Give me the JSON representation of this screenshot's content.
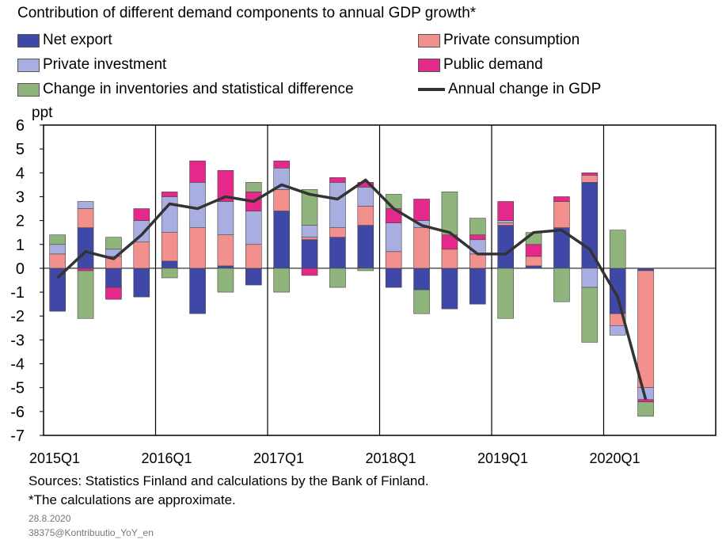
{
  "title": "Contribution of different demand components to annual GDP growth*",
  "legend": [
    {
      "key": "net_export",
      "label": "Net export"
    },
    {
      "key": "private_consumption",
      "label": "Private consumption"
    },
    {
      "key": "private_investment",
      "label": "Private investment"
    },
    {
      "key": "public_demand",
      "label": "Public demand"
    },
    {
      "key": "inventories",
      "label": "Change in inventories and statistical difference"
    },
    {
      "key": "gdp_line",
      "label": "Annual change in GDP"
    }
  ],
  "footer": {
    "sources": "Sources: Statistics Finland and calculations by the Bank of Finland.",
    "note": "*The calculations are approximate.",
    "date": "28.8.2020",
    "code": "38375@Kontribuutio_YoY_en"
  },
  "chart_data": {
    "type": "bar",
    "stacked": true,
    "ylabel": "ppt",
    "ylim": [
      -7,
      6
    ],
    "yticks": [
      6,
      5,
      4,
      3,
      2,
      1,
      0,
      -1,
      -2,
      -3,
      -4,
      -5,
      -6,
      -7
    ],
    "grid": "vertical lines at each year start",
    "x_tick_labels": [
      "2015Q1",
      "2016Q1",
      "2017Q1",
      "2018Q1",
      "2019Q1",
      "2020Q1"
    ],
    "categories": [
      "2015Q1",
      "2015Q2",
      "2015Q3",
      "2015Q4",
      "2016Q1",
      "2016Q2",
      "2016Q3",
      "2016Q4",
      "2017Q1",
      "2017Q2",
      "2017Q3",
      "2017Q4",
      "2018Q1",
      "2018Q2",
      "2018Q3",
      "2018Q4",
      "2019Q1",
      "2019Q2",
      "2019Q3",
      "2019Q4",
      "2020Q1",
      "2020Q2"
    ],
    "colors": {
      "net_export": "#3f48a6",
      "private_consumption": "#f2908e",
      "private_investment": "#a9aee0",
      "public_demand": "#e4298a",
      "inventories": "#8fb57c",
      "gdp_line": "#333333"
    },
    "series": [
      {
        "name": "Net export",
        "key": "net_export",
        "values": [
          -1.8,
          1.7,
          -0.8,
          -1.2,
          0.3,
          -1.9,
          0.1,
          -0.7,
          2.4,
          1.2,
          1.3,
          1.8,
          -0.8,
          -0.9,
          -1.7,
          -1.5,
          1.8,
          0.1,
          1.7,
          3.6,
          -1.9,
          -0.1
        ]
      },
      {
        "name": "Private consumption",
        "key": "private_consumption",
        "values": [
          0.6,
          0.8,
          0.5,
          1.1,
          1.2,
          1.7,
          1.3,
          1.0,
          0.9,
          0.1,
          0.4,
          0.8,
          0.7,
          1.7,
          0.8,
          0.6,
          0.1,
          0.4,
          1.1,
          0.3,
          -0.5,
          -4.9
        ]
      },
      {
        "name": "Private investment",
        "key": "private_investment",
        "values": [
          0.4,
          0.3,
          0.3,
          0.9,
          1.5,
          1.9,
          1.4,
          1.4,
          0.9,
          0.5,
          1.9,
          0.8,
          1.2,
          0.3,
          0.0,
          0.6,
          0.1,
          0.0,
          0.0,
          -0.8,
          -0.4,
          -0.5
        ]
      },
      {
        "name": "Public demand",
        "key": "public_demand",
        "values": [
          0.0,
          -0.1,
          -0.5,
          0.5,
          0.2,
          0.9,
          1.3,
          0.8,
          0.3,
          -0.3,
          0.2,
          0.2,
          0.6,
          0.9,
          0.6,
          0.2,
          0.8,
          0.5,
          0.2,
          0.1,
          0.0,
          -0.1
        ]
      },
      {
        "name": "Change in inventories and statistical difference",
        "key": "inventories",
        "values": [
          0.4,
          -2.0,
          0.5,
          0.0,
          -0.4,
          0.0,
          -1.0,
          0.4,
          -1.0,
          1.5,
          -0.8,
          -0.1,
          0.6,
          -1.0,
          1.8,
          0.7,
          -2.1,
          0.5,
          -1.4,
          -2.3,
          1.6,
          -0.6
        ]
      }
    ],
    "line": {
      "name": "Annual change in GDP",
      "key": "gdp_line",
      "values": [
        -0.4,
        0.7,
        0.4,
        1.4,
        2.7,
        2.5,
        3.0,
        2.8,
        3.5,
        3.1,
        2.9,
        3.7,
        2.5,
        1.8,
        1.5,
        0.6,
        0.6,
        1.5,
        1.6,
        0.8,
        -1.2,
        -5.5
      ]
    }
  }
}
